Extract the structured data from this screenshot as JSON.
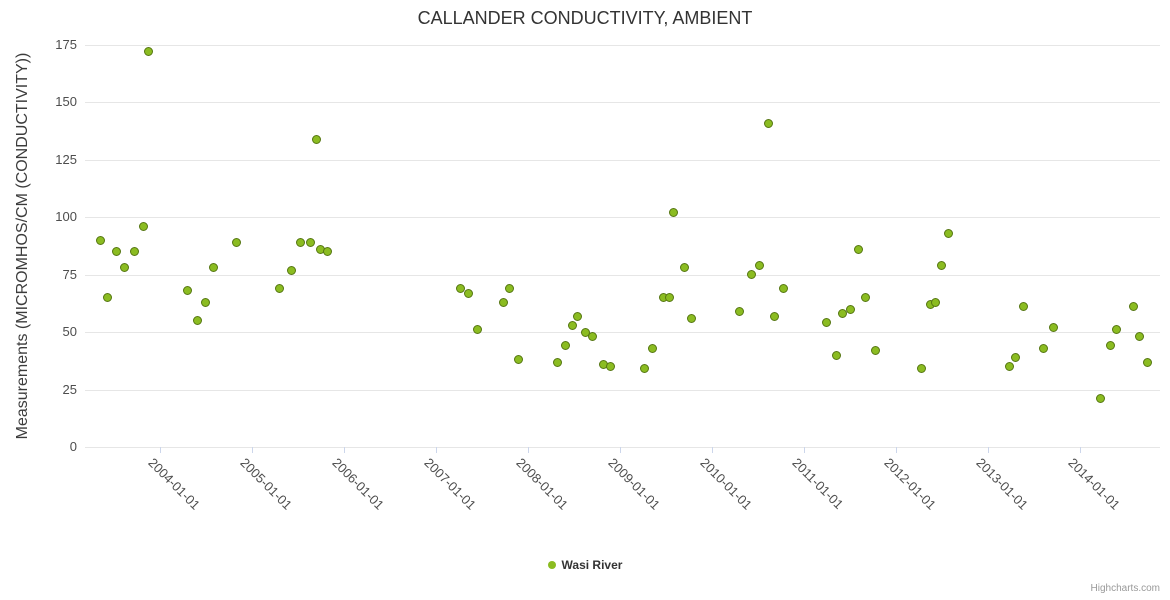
{
  "credits": "Highcharts.com",
  "chart_data": {
    "type": "scatter",
    "title": "CALLANDER CONDUCTIVITY, AMBIENT",
    "xlabel": "",
    "ylabel": "Measurements (MICROMHOS/CM (CONDUCTIVITY))",
    "ylim": [
      0,
      175
    ],
    "xlim": [
      2003.18,
      2014.87
    ],
    "y_ticks": [
      0,
      25,
      50,
      75,
      100,
      125,
      150,
      175
    ],
    "x_ticks": [
      {
        "value": 2004,
        "label": "2004-01-01"
      },
      {
        "value": 2005,
        "label": "2005-01-01"
      },
      {
        "value": 2006,
        "label": "2006-01-01"
      },
      {
        "value": 2007,
        "label": "2007-01-01"
      },
      {
        "value": 2008,
        "label": "2008-01-01"
      },
      {
        "value": 2009,
        "label": "2009-01-01"
      },
      {
        "value": 2010,
        "label": "2010-01-01"
      },
      {
        "value": 2011,
        "label": "2011-01-01"
      },
      {
        "value": 2012,
        "label": "2012-01-01"
      },
      {
        "value": 2013,
        "label": "2013-01-01"
      },
      {
        "value": 2014,
        "label": "2014-01-01"
      }
    ],
    "grid": true,
    "legend_position": "bottom",
    "series": [
      {
        "name": "Wasi River",
        "color": "#8bbc21",
        "border_color": "#567712",
        "points": [
          [
            2003.35,
            90
          ],
          [
            2003.42,
            65
          ],
          [
            2003.52,
            85
          ],
          [
            2003.61,
            78
          ],
          [
            2003.72,
            85
          ],
          [
            2003.82,
            96
          ],
          [
            2003.87,
            172
          ],
          [
            2004.3,
            68
          ],
          [
            2004.4,
            55
          ],
          [
            2004.49,
            63
          ],
          [
            2004.58,
            78
          ],
          [
            2004.83,
            89
          ],
          [
            2005.3,
            69
          ],
          [
            2005.43,
            77
          ],
          [
            2005.52,
            89
          ],
          [
            2005.63,
            89
          ],
          [
            2005.7,
            134
          ],
          [
            2005.74,
            86
          ],
          [
            2005.82,
            85
          ],
          [
            2007.26,
            69
          ],
          [
            2007.35,
            67
          ],
          [
            2007.45,
            51
          ],
          [
            2007.73,
            63
          ],
          [
            2007.8,
            69
          ],
          [
            2007.89,
            38
          ],
          [
            2008.32,
            37
          ],
          [
            2008.4,
            44
          ],
          [
            2008.48,
            53
          ],
          [
            2008.54,
            57
          ],
          [
            2008.62,
            50
          ],
          [
            2008.7,
            48
          ],
          [
            2008.82,
            36
          ],
          [
            2008.89,
            35
          ],
          [
            2009.26,
            34
          ],
          [
            2009.35,
            43
          ],
          [
            2009.47,
            65
          ],
          [
            2009.54,
            65
          ],
          [
            2009.58,
            102
          ],
          [
            2009.7,
            78
          ],
          [
            2009.78,
            56
          ],
          [
            2010.3,
            59
          ],
          [
            2010.43,
            75
          ],
          [
            2010.52,
            79
          ],
          [
            2010.61,
            141
          ],
          [
            2010.68,
            57
          ],
          [
            2010.78,
            69
          ],
          [
            2011.24,
            54
          ],
          [
            2011.35,
            40
          ],
          [
            2011.42,
            58
          ],
          [
            2011.5,
            60
          ],
          [
            2011.59,
            86
          ],
          [
            2011.67,
            65
          ],
          [
            2011.78,
            42
          ],
          [
            2012.28,
            34
          ],
          [
            2012.37,
            62
          ],
          [
            2012.43,
            63
          ],
          [
            2012.49,
            79
          ],
          [
            2012.57,
            93
          ],
          [
            2013.23,
            35
          ],
          [
            2013.3,
            39
          ],
          [
            2013.39,
            61
          ],
          [
            2013.6,
            43
          ],
          [
            2013.71,
            52
          ],
          [
            2014.22,
            21
          ],
          [
            2014.33,
            44
          ],
          [
            2014.4,
            51
          ],
          [
            2014.58,
            61
          ],
          [
            2014.65,
            48
          ],
          [
            2014.73,
            37
          ]
        ]
      }
    ]
  }
}
